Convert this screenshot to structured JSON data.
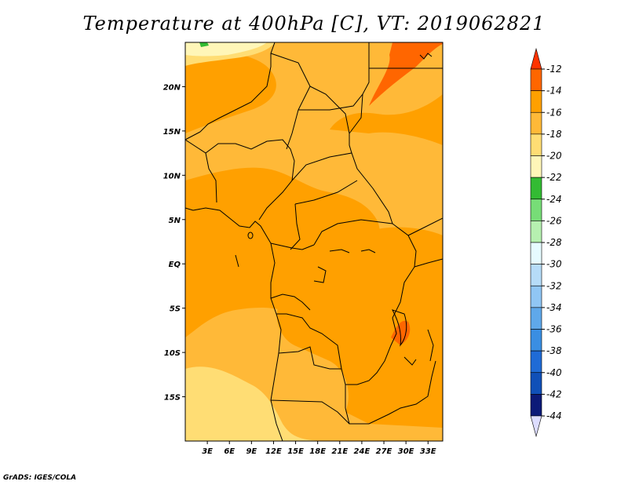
{
  "title": "Temperature at 400hPa [C], VT: 2019062821",
  "credit": "GrADS: IGES/COLA",
  "map": {
    "lon_range": [
      0,
      35
    ],
    "lat_range": [
      -20,
      25
    ],
    "lon_ticks": [
      {
        "value": 3,
        "label": "3E"
      },
      {
        "value": 6,
        "label": "6E"
      },
      {
        "value": 9,
        "label": "9E"
      },
      {
        "value": 12,
        "label": "12E"
      },
      {
        "value": 15,
        "label": "15E"
      },
      {
        "value": 18,
        "label": "18E"
      },
      {
        "value": 21,
        "label": "21E"
      },
      {
        "value": 24,
        "label": "24E"
      },
      {
        "value": 27,
        "label": "27E"
      },
      {
        "value": 30,
        "label": "30E"
      },
      {
        "value": 33,
        "label": "33E"
      }
    ],
    "lat_ticks": [
      {
        "value": 20,
        "label": "20N"
      },
      {
        "value": 15,
        "label": "15N"
      },
      {
        "value": 10,
        "label": "10N"
      },
      {
        "value": 5,
        "label": "5N"
      },
      {
        "value": 0,
        "label": "EQ"
      },
      {
        "value": -5,
        "label": "5S"
      },
      {
        "value": -10,
        "label": "10S"
      },
      {
        "value": -15,
        "label": "15S"
      }
    ],
    "field_colors": {
      "c14": "#ff6600",
      "c16": "#ffa000",
      "c18": "#ffb938",
      "c20": "#ffdd74",
      "c22": "#fff6b8",
      "c24": "#33bb33"
    }
  },
  "colorbar": {
    "levels": [
      "-12",
      "-14",
      "-16",
      "-18",
      "-20",
      "-22",
      "-24",
      "-26",
      "-28",
      "-30",
      "-32",
      "-34",
      "-36",
      "-38",
      "-40",
      "-42",
      "-44"
    ],
    "colors": [
      "#ff3300",
      "#ff6600",
      "#ffa000",
      "#ffb938",
      "#ffdd74",
      "#fff6b8",
      "#33bb33",
      "#77dd77",
      "#b6f0b0",
      "#e6fbff",
      "#b6dcf8",
      "#90c6f4",
      "#5fa8ea",
      "#3a8ee2",
      "#1f6bd6",
      "#1050b8",
      "#0c1a78",
      "#ddddff"
    ]
  }
}
